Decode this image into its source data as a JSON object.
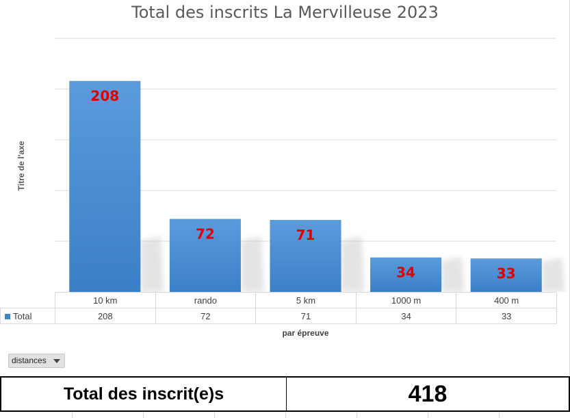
{
  "chart_data": {
    "type": "bar",
    "title": "Total des inscrits La Mervilleuse 2023",
    "xlabel": "par épreuve",
    "ylabel": "Titre de l'axe",
    "categories": [
      "10 km",
      "rando",
      "5 km",
      "1000 m",
      "400 m"
    ],
    "series": [
      {
        "name": "Total",
        "values": [
          208,
          72,
          71,
          34,
          33
        ],
        "color": "#4a8fd6"
      }
    ],
    "data_label_color": "#e00000",
    "ylim": [
      0,
      250
    ],
    "grid": true,
    "legend": "data-table"
  },
  "filter": {
    "label": "distances",
    "icon": "dropdown-arrow-icon"
  },
  "summary": {
    "label": "Total des inscrit(e)s",
    "value": "418"
  }
}
